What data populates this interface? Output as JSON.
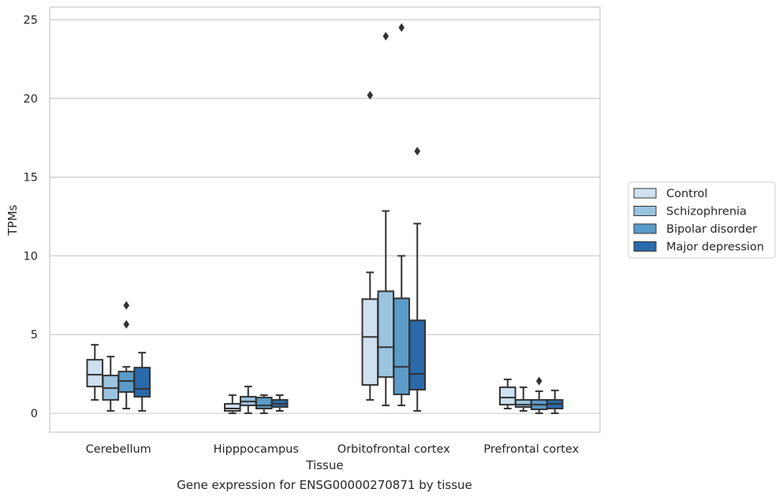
{
  "caption": "Gene expression for ENSG00000270871 by tissue",
  "chart_data": {
    "type": "box",
    "title": "",
    "xlabel": "Tissue",
    "ylabel": "TPMs",
    "ylim": [
      -1.2,
      25.8
    ],
    "yticks": [
      0,
      5,
      10,
      15,
      20,
      25
    ],
    "grid": "horizontal",
    "legend_position": "right",
    "categories": [
      "Cerebellum",
      "Hipppocampus",
      "Orbitofrontal cortex",
      "Prefrontal cortex"
    ],
    "series": [
      {
        "name": "Control",
        "color": "#cfe0f0",
        "boxes": [
          {
            "whislo": 0.85,
            "q1": 1.7,
            "med": 2.45,
            "q3": 3.4,
            "whishi": 4.35,
            "fliers": []
          },
          {
            "whislo": 0.0,
            "q1": 0.15,
            "med": 0.3,
            "q3": 0.6,
            "whishi": 1.15,
            "fliers": []
          },
          {
            "whislo": 0.85,
            "q1": 1.8,
            "med": 4.85,
            "q3": 7.25,
            "whishi": 8.95,
            "fliers": [
              20.2
            ]
          },
          {
            "whislo": 0.3,
            "q1": 0.55,
            "med": 1.0,
            "q3": 1.65,
            "whishi": 2.15,
            "fliers": []
          }
        ]
      },
      {
        "name": "Schizophrenia",
        "color": "#9ac4e0",
        "boxes": [
          {
            "whislo": 0.15,
            "q1": 0.85,
            "med": 1.6,
            "q3": 2.4,
            "whishi": 3.6,
            "fliers": []
          },
          {
            "whislo": 0.0,
            "q1": 0.5,
            "med": 0.75,
            "q3": 1.05,
            "whishi": 1.7,
            "fliers": []
          },
          {
            "whislo": 0.5,
            "q1": 2.3,
            "med": 4.2,
            "q3": 7.75,
            "whishi": 12.85,
            "fliers": [
              23.95
            ]
          },
          {
            "whislo": 0.15,
            "q1": 0.4,
            "med": 0.55,
            "q3": 0.85,
            "whishi": 1.65,
            "fliers": []
          }
        ]
      },
      {
        "name": "Bipolar disorder",
        "color": "#5b9bc8",
        "boxes": [
          {
            "whislo": 0.3,
            "q1": 1.35,
            "med": 2.05,
            "q3": 2.65,
            "whishi": 2.95,
            "fliers": [
              5.65,
              6.85
            ]
          },
          {
            "whislo": 0.0,
            "q1": 0.3,
            "med": 0.5,
            "q3": 1.0,
            "whishi": 1.15,
            "fliers": []
          },
          {
            "whislo": 0.5,
            "q1": 1.2,
            "med": 2.95,
            "q3": 7.3,
            "whishi": 10.0,
            "fliers": [
              24.5
            ]
          },
          {
            "whislo": 0.0,
            "q1": 0.25,
            "med": 0.55,
            "q3": 0.85,
            "whishi": 1.4,
            "fliers": [
              2.05
            ]
          }
        ]
      },
      {
        "name": "Major depression",
        "color": "#2b6aaa",
        "boxes": [
          {
            "whislo": 0.15,
            "q1": 1.05,
            "med": 1.55,
            "q3": 2.9,
            "whishi": 3.85,
            "fliers": []
          },
          {
            "whislo": 0.15,
            "q1": 0.4,
            "med": 0.6,
            "q3": 0.85,
            "whishi": 1.15,
            "fliers": []
          },
          {
            "whislo": 0.15,
            "q1": 1.5,
            "med": 2.5,
            "q3": 5.9,
            "whishi": 12.05,
            "fliers": [
              16.65
            ]
          },
          {
            "whislo": 0.0,
            "q1": 0.3,
            "med": 0.6,
            "q3": 0.85,
            "whishi": 1.45,
            "fliers": []
          }
        ]
      }
    ]
  }
}
